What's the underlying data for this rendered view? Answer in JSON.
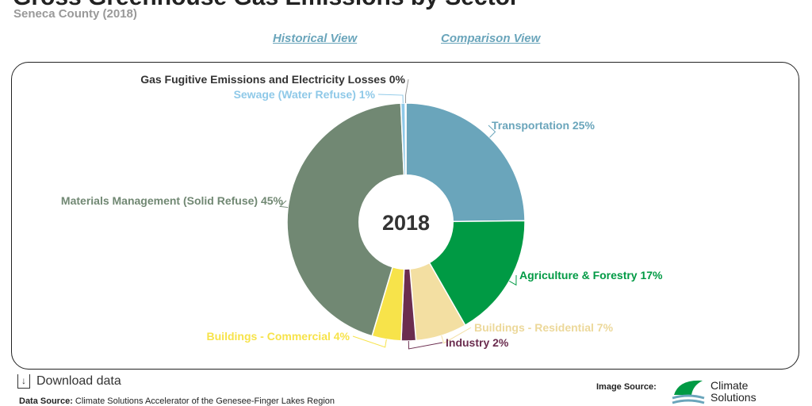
{
  "header": {
    "title": "Gross Greenhouse Gas Emissions by Sector",
    "subtitle": "Seneca County (2018)"
  },
  "links": {
    "historical": "Historical View",
    "comparison": "Comparison View"
  },
  "chart_data": {
    "type": "pie",
    "donut": true,
    "center_label": "2018",
    "slices": [
      {
        "label": "Transportation 25%",
        "name": "Transportation",
        "value": 25,
        "color": "#6aa5bb"
      },
      {
        "label": "Agriculture & Forestry 17%",
        "name": "Agriculture & Forestry",
        "value": 17,
        "color": "#009a44"
      },
      {
        "label": "Buildings - Residential 7%",
        "name": "Buildings - Residential",
        "value": 7,
        "color": "#f3dfa2"
      },
      {
        "label": "Industry 2%",
        "name": "Industry",
        "value": 2,
        "color": "#6b2d4f"
      },
      {
        "label": "Buildings - Commercial 4%",
        "name": "Buildings - Commercial",
        "value": 4,
        "color": "#f7e34a"
      },
      {
        "label": "Materials Management (Solid Refuse) 45%",
        "name": "Materials Management (Solid Refuse)",
        "value": 45,
        "color": "#718873"
      },
      {
        "label": "Sewage (Water Refuse) 1%",
        "name": "Sewage (Water Refuse)",
        "value": 0.6,
        "color": "#8fc9e8"
      },
      {
        "label": "Gas Fugitive Emissions and Electricity Losses 0%",
        "name": "Gas Fugitive Emissions and Electricity Losses",
        "value": 0.1,
        "color": "#333333"
      }
    ]
  },
  "footer": {
    "download": "Download data",
    "data_source_label": "Data Source:",
    "data_source": "Climate Solutions Accelerator of the Genesee-Finger Lakes Region",
    "image_source_label": "Image Source:",
    "logo_line1": "Climate",
    "logo_line2": "Solutions"
  }
}
